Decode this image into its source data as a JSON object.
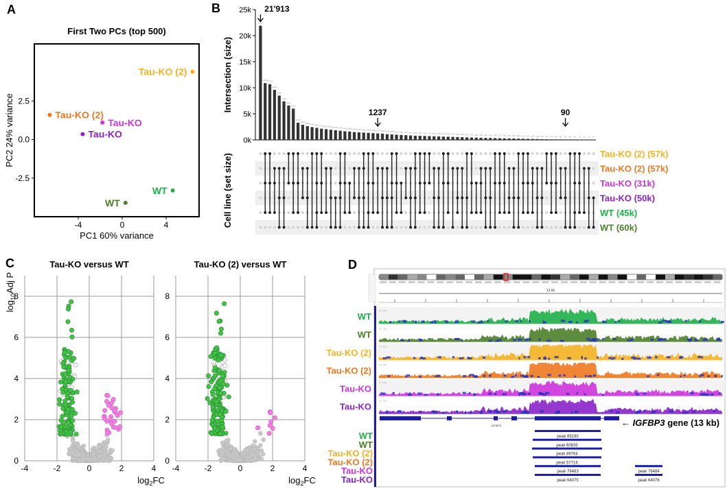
{
  "panel_letters": [
    "A",
    "B",
    "C",
    "D"
  ],
  "colors": {
    "tau_ko_2_yellow": "#f5b323",
    "tau_ko_2_orange": "#f07820",
    "tau_ko_magenta": "#cc33dd",
    "tau_ko_purple": "#8a22c8",
    "wt_green": "#1fb04a",
    "wt_olive": "#4c7f2a",
    "sig_down": "#45c14a",
    "sig_up": "#f080e0",
    "ns": "#bdbdbd",
    "igv_blue": "#1c1cb0"
  },
  "chart_data": [
    {
      "type": "scatter",
      "panel": "A",
      "title": "First Two PCs (top 500)",
      "xlabel": "PC1 60% variance",
      "ylabel": "PC2 24% variance",
      "xlim": [
        -8,
        7
      ],
      "ylim": [
        -5,
        6.2
      ],
      "xticks": [
        -4,
        0,
        4
      ],
      "yticks": [
        2.5,
        0.0,
        -2.5
      ],
      "ytick_labels": [
        "2.5",
        "0.0",
        "-2.5"
      ],
      "points": [
        {
          "label": "Tau-KO (2)",
          "x": 6.4,
          "y": 4.4,
          "color": "#f5b323",
          "label_side": "left"
        },
        {
          "label": "Tau-KO (2)",
          "x": -6.6,
          "y": 1.6,
          "color": "#f07820",
          "label_side": "right"
        },
        {
          "label": "Tau-KO",
          "x": -1.8,
          "y": 1.1,
          "color": "#cc33dd",
          "label_side": "right"
        },
        {
          "label": "Tau-KO",
          "x": -3.6,
          "y": 0.35,
          "color": "#8a22c8",
          "label_side": "right"
        },
        {
          "label": "WT",
          "x": 4.6,
          "y": -3.3,
          "color": "#1fb04a",
          "label_side": "left"
        },
        {
          "label": "WT",
          "x": 0.3,
          "y": -4.1,
          "color": "#4c7f2a",
          "label_side": "left"
        }
      ]
    },
    {
      "type": "bar",
      "panel": "B",
      "ylabel": "Intersection (size)",
      "ylim": [
        0,
        25000
      ],
      "yticks": [
        0,
        5000,
        10000,
        15000,
        20000,
        25000
      ],
      "ytick_labels": [
        "0k",
        "5k",
        "10k",
        "15k",
        "20k",
        "25k"
      ],
      "values": [
        21913,
        10900,
        10700,
        9600,
        8500,
        7400,
        6600,
        6000,
        3300,
        2900,
        2650,
        2450,
        2300,
        2150,
        2050,
        1950,
        1850,
        1750,
        1650,
        1600,
        1500,
        1450,
        1400,
        1350,
        1300,
        1237,
        1200,
        1100,
        1050,
        1000,
        950,
        900,
        850,
        800,
        780,
        750,
        720,
        690,
        660,
        630,
        600,
        570,
        540,
        510,
        480,
        450,
        420,
        400,
        380,
        360,
        340,
        320,
        300,
        280,
        260,
        240,
        220,
        200,
        180,
        160,
        140,
        120,
        110,
        100,
        95,
        90,
        85,
        80,
        70,
        60,
        50,
        40
      ],
      "annotations": [
        {
          "text": "21'913",
          "bar_index": 0
        },
        {
          "text": "1237",
          "bar_index": 25
        },
        {
          "text": "90",
          "bar_index": 65
        }
      ],
      "set_axis_label": "Cell line (set size)",
      "sets": [
        {
          "label": "Tau-KO (2) (57k)",
          "color": "#f5b323"
        },
        {
          "label": "Tau-KO (2) (57k)",
          "color": "#f07820"
        },
        {
          "label": "Tau-KO (31k)",
          "color": "#cc33dd"
        },
        {
          "label": "Tau-KO (50k)",
          "color": "#8a22c8"
        },
        {
          "label": "WT (45k)",
          "color": "#1fb04a"
        },
        {
          "label": "WT (60k)",
          "color": "#4c7f2a"
        }
      ]
    },
    {
      "type": "scatter",
      "panel": "C-left",
      "title": "Tau-KO versus WT",
      "xlabel_main": "log",
      "xlabel_sub": "2",
      "xlabel_tail": "FC",
      "ylabel_main": "log",
      "ylabel_sub": "10",
      "ylabel_tail": "Adj P",
      "xlim": [
        -4,
        4
      ],
      "ylim": [
        0,
        9
      ],
      "xticks": [
        -4,
        -2,
        0,
        2,
        4
      ],
      "yticks": [
        0,
        2,
        4,
        6,
        8
      ]
    },
    {
      "type": "scatter",
      "panel": "C-right",
      "title": "Tau-KO (2) versus WT",
      "xlabel_main": "log",
      "xlabel_sub": "2",
      "xlabel_tail": "FC",
      "xlim": [
        -4,
        4
      ],
      "ylim": [
        0,
        9
      ],
      "xticks": [
        -4,
        -2,
        0,
        2,
        4
      ],
      "yticks": [
        0,
        2,
        4,
        6,
        8
      ]
    },
    {
      "type": "area",
      "panel": "D",
      "scale_label": "13 kb",
      "tracks": [
        {
          "label": "WT",
          "color": "#1fb04a"
        },
        {
          "label": "WT",
          "color": "#4c7f2a"
        },
        {
          "label": "Tau-KO (2)",
          "color": "#f5b323"
        },
        {
          "label": "Tau-KO (2)",
          "color": "#f07820"
        },
        {
          "label": "Tau-KO",
          "color": "#cc33dd"
        },
        {
          "label": "Tau-KO",
          "color": "#8a22c8"
        }
      ],
      "gene_label_arrow": "←",
      "gene_label_italic": "IGFBP3",
      "gene_label_rest": "gene (13 kb)",
      "gene_name_small": "IGFBP3",
      "peak_rows": [
        {
          "label": "WT",
          "color": "#1fb04a",
          "peaks": [
            "peak 85190"
          ]
        },
        {
          "label": "WT",
          "color": "#4c7f2a",
          "peaks": [
            "peak 60835"
          ]
        },
        {
          "label": "Tau-KO (2)",
          "color": "#f5b323",
          "peaks": [
            "peak 89764"
          ]
        },
        {
          "label": "Tau-KO (2)",
          "color": "#f07820",
          "peaks": [
            "peak 57716"
          ]
        },
        {
          "label": "Tau-KO",
          "color": "#cc33dd",
          "peaks": [
            "peak 76483",
            "peak 76484"
          ]
        },
        {
          "label": "Tau-KO",
          "color": "#8a22c8",
          "peaks": [
            "peak 64075",
            "peak 64076"
          ]
        }
      ]
    }
  ]
}
